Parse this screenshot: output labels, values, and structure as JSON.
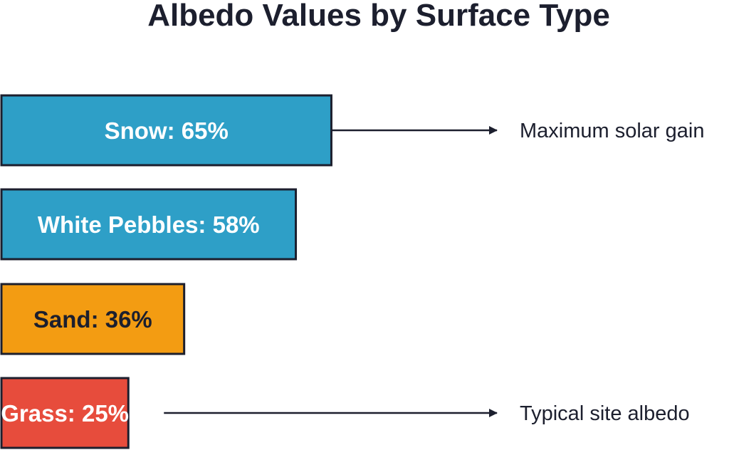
{
  "chart_data": {
    "type": "bar",
    "orientation": "horizontal",
    "title": "Albedo Values by Surface Type",
    "xlabel": "",
    "ylabel": "",
    "unit": "%",
    "grid": false,
    "legend": "none",
    "bars": [
      {
        "category": "Snow",
        "value": 65,
        "label": "Snow: 65%",
        "color": "#2e9fc7",
        "text_color": "#ffffff"
      },
      {
        "category": "White Pebbles",
        "value": 58,
        "label": "White Pebbles: 58%",
        "color": "#2e9fc7",
        "text_color": "#ffffff"
      },
      {
        "category": "Sand",
        "value": 36,
        "label": "Sand: 36%",
        "color": "#f39c12",
        "text_color": "#1c1f2e"
      },
      {
        "category": "Grass",
        "value": 25,
        "label": "Grass: 25%",
        "color": "#e74c3c",
        "text_color": "#ffffff"
      }
    ],
    "annotations": [
      {
        "category": "Snow",
        "text": "Maximum solar gain"
      },
      {
        "category": "Grass",
        "text": "Typical site albedo"
      }
    ]
  },
  "colors": {
    "outline": "#1c1f2e",
    "arrow": "#1c1f2e",
    "title": "#1c1f2e",
    "background": "#ffffff"
  }
}
